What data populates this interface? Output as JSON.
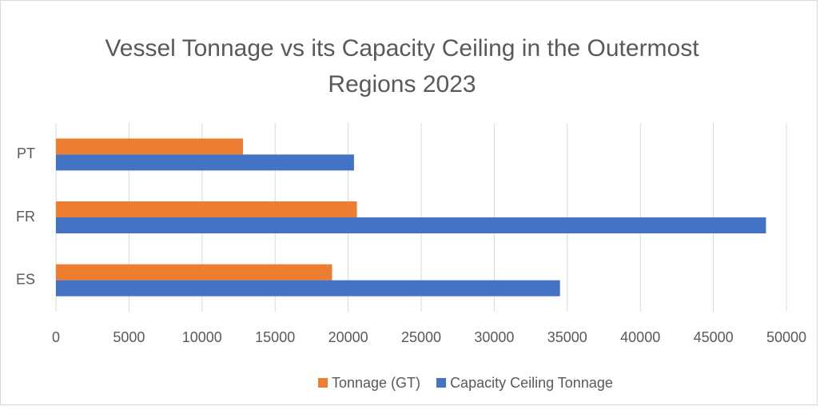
{
  "chart_data": {
    "type": "bar",
    "orientation": "horizontal",
    "title": "Vessel Tonnage vs its Capacity Ceiling in the Outermost Regions 2023",
    "categories": [
      "ES",
      "FR",
      "PT"
    ],
    "series": [
      {
        "name": "Tonnage (GT)",
        "color": "#ed7d31",
        "values": [
          18900,
          20600,
          12800
        ]
      },
      {
        "name": "Capacity Ceiling Tonnage",
        "color": "#4472c4",
        "values": [
          34500,
          48600,
          20400
        ]
      }
    ],
    "xlim": [
      0,
      50000
    ],
    "xticks": [
      0,
      5000,
      10000,
      15000,
      20000,
      25000,
      30000,
      35000,
      40000,
      45000,
      50000
    ],
    "grid": true,
    "legend": "bottom"
  }
}
